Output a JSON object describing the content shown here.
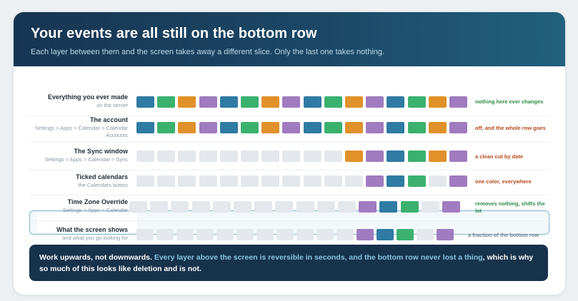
{
  "header": {
    "title": "Your events are all still on the bottom row",
    "subtitle": "Each layer between them and the screen takes away a different slice. Only the last one takes nothing."
  },
  "colors": {
    "blue": "#2f7ba3",
    "green": "#3bb16e",
    "orange": "#e0912a",
    "purple": "#a07bc0",
    "empty": "#e4e8ec",
    "note_green": "#2e8b4a",
    "note_red": "#b5481f",
    "note_gray": "#6f7d8a"
  },
  "rows": [
    {
      "name": "Everything you ever made",
      "path": "on the server",
      "blocks": [
        "blue",
        "green",
        "orange",
        "purple",
        "blue",
        "green",
        "orange",
        "purple",
        "blue",
        "green",
        "orange",
        "purple",
        "blue",
        "green",
        "orange",
        "purple"
      ],
      "note": "nothing here ever changes",
      "note_color": "note_green"
    },
    {
      "name": "The account",
      "path": "Settings > Apps > Calendar > Calendar Accounts",
      "blocks": [
        "blue",
        "green",
        "orange",
        "purple",
        "blue",
        "green",
        "orange",
        "purple",
        "blue",
        "green",
        "orange",
        "purple",
        "blue",
        "green",
        "orange",
        "purple"
      ],
      "note": "off, and the whole row goes",
      "note_color": "note_red"
    },
    {
      "name": "The Sync window",
      "path": "Settings > Apps > Calendar > Sync",
      "blocks": [
        "empty",
        "empty",
        "empty",
        "empty",
        "empty",
        "empty",
        "empty",
        "empty",
        "empty",
        "empty",
        "orange",
        "purple",
        "blue",
        "green",
        "orange",
        "purple"
      ],
      "note": "a clean cut by date",
      "note_color": "note_red"
    },
    {
      "name": "Ticked calendars",
      "path": "the Calendars button",
      "blocks": [
        "empty",
        "empty",
        "empty",
        "empty",
        "empty",
        "empty",
        "empty",
        "empty",
        "empty",
        "empty",
        "empty",
        "purple",
        "blue",
        "green",
        "empty",
        "purple"
      ],
      "note": "one color, everywhere",
      "note_color": "note_red"
    },
    {
      "name": "Time Zone Override",
      "path": "Settings > Apps > Calendar",
      "blocks": [
        "empty",
        "empty",
        "empty",
        "empty",
        "empty",
        "empty",
        "empty",
        "empty",
        "empty",
        "empty",
        "empty",
        "purple",
        "blue",
        "green",
        "empty",
        "purple"
      ],
      "note": "removes nothing, shifts the lot",
      "note_color": "note_green"
    },
    {
      "name": "What the screen shows",
      "path": "and what you go looking for",
      "blocks": [
        "empty",
        "empty",
        "empty",
        "empty",
        "empty",
        "empty",
        "empty",
        "empty",
        "empty",
        "empty",
        "empty",
        "purple",
        "blue",
        "green",
        "empty",
        "purple"
      ],
      "note": "a fraction of the bottom row",
      "note_color": "note_gray"
    }
  ],
  "footer": {
    "lead": "Work upwards, not downwards.",
    "highlight": "Every layer above the screen is reversible in seconds, and the bottom row never lost a thing",
    "tail": ", which is why so much of this looks like deletion and is not."
  }
}
